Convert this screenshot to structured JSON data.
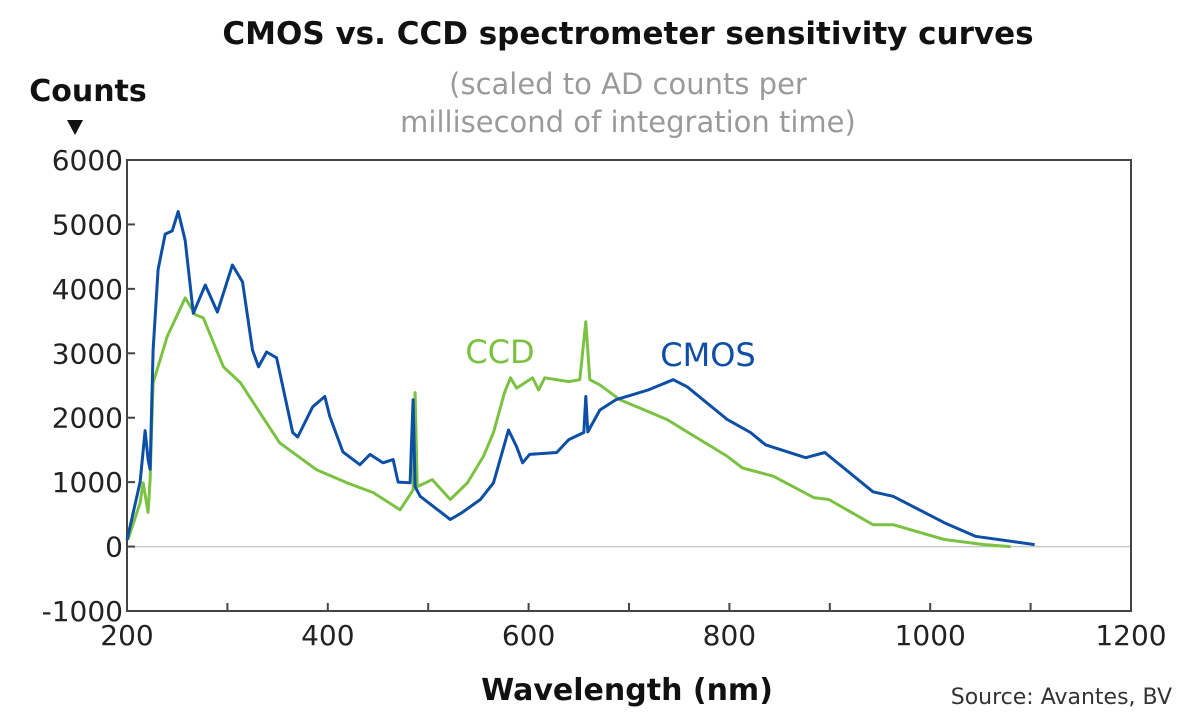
{
  "chart_data": {
    "type": "line",
    "title": "CMOS vs. CCD spectrometer sensitivity curves",
    "subtitle": [
      "(scaled to AD counts per",
      "millisecond of integration time)"
    ],
    "xlabel": "Wavelength (nm)",
    "ylabel": "Counts",
    "source": "Source: Avantes, BV",
    "xlim": [
      200,
      1200
    ],
    "ylim": [
      -1000,
      6000
    ],
    "xticks": [
      200,
      400,
      600,
      800,
      1000,
      1200
    ],
    "xtick_labels": [
      "200",
      "400",
      "600",
      "800",
      "1000",
      "1200"
    ],
    "yticks": [
      -1000,
      0,
      1000,
      2000,
      3000,
      4000,
      5000,
      6000
    ],
    "ytick_labels": [
      "-1000",
      "0",
      "1000",
      "2000",
      "3000",
      "4000",
      "5000",
      "6000"
    ],
    "grid": false,
    "zero_line": true,
    "series": [
      {
        "name": "CMOS",
        "color": "#0d4ea6",
        "x": [
          200,
          213,
          218,
          221,
          223,
          226,
          231,
          238,
          245,
          251,
          258,
          266,
          278,
          290,
          305,
          315,
          325,
          331,
          339,
          349,
          365,
          370,
          385,
          397,
          402,
          415,
          432,
          442,
          455,
          465,
          470,
          482,
          485,
          487,
          492,
          522,
          534,
          552,
          565,
          580,
          588,
          594,
          601,
          628,
          640,
          655,
          657,
          659,
          671,
          687,
          719,
          744,
          758,
          798,
          821,
          836,
          876,
          895,
          943,
          963,
          1014,
          1045,
          1104
        ],
        "y": [
          100,
          1000,
          1800,
          1350,
          1200,
          3050,
          4300,
          4850,
          4900,
          5200,
          4750,
          3620,
          4060,
          3640,
          4370,
          4110,
          3050,
          2790,
          3020,
          2930,
          1770,
          1700,
          2170,
          2330,
          2020,
          1470,
          1270,
          1430,
          1300,
          1350,
          1000,
          990,
          2280,
          930,
          780,
          420,
          530,
          730,
          990,
          1810,
          1550,
          1300,
          1430,
          1460,
          1660,
          1770,
          2330,
          1780,
          2120,
          2280,
          2430,
          2590,
          2480,
          1970,
          1770,
          1580,
          1380,
          1460,
          850,
          780,
          370,
          160,
          30
        ]
      },
      {
        "name": "CCD",
        "color": "#7cc242",
        "x": [
          201,
          213,
          216,
          221,
          223,
          226,
          240,
          258,
          268,
          276,
          296,
          313,
          352,
          389,
          419,
          445,
          472,
          485,
          487,
          489,
          504,
          522,
          539,
          555,
          565,
          576,
          582,
          588,
          604,
          610,
          616,
          640,
          651,
          657,
          661,
          671,
          691,
          738,
          758,
          798,
          813,
          844,
          884,
          899,
          943,
          963,
          1014,
          1054,
          1080
        ],
        "y": [
          110,
          680,
          990,
          530,
          1040,
          2540,
          3260,
          3860,
          3600,
          3550,
          2790,
          2540,
          1610,
          1190,
          990,
          840,
          570,
          880,
          2390,
          930,
          1040,
          730,
          990,
          1400,
          1770,
          2390,
          2620,
          2460,
          2620,
          2430,
          2620,
          2560,
          2590,
          3490,
          2590,
          2510,
          2280,
          1970,
          1780,
          1400,
          1220,
          1090,
          760,
          730,
          340,
          340,
          110,
          30,
          0
        ]
      }
    ]
  }
}
